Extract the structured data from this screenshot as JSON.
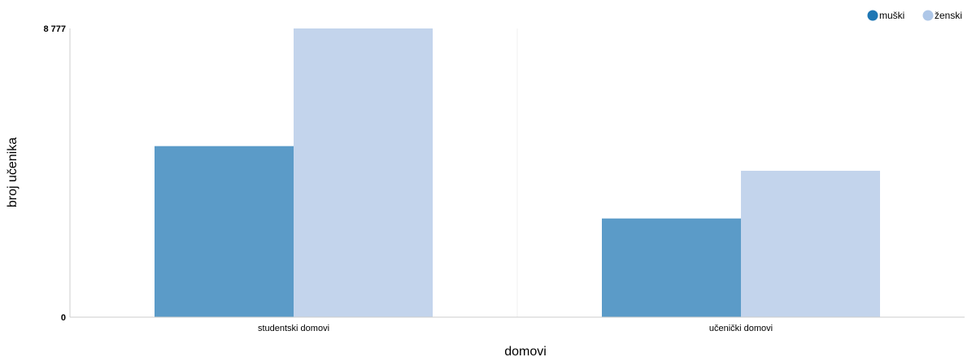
{
  "chart_data": {
    "type": "bar",
    "title": "",
    "xlabel": "domovi",
    "ylabel": "broj učenika",
    "categories": [
      "studentski domovi",
      "učenički domovi"
    ],
    "series": [
      {
        "name": "muški",
        "color": "#5b9bc8",
        "legend_color": "#1f77b4",
        "values": [
          5200,
          3000
        ]
      },
      {
        "name": "ženski",
        "color": "#c3d4ec",
        "legend_color": "#aec7e8",
        "values": [
          8777,
          4450
        ]
      }
    ],
    "ylim": [
      0,
      8777
    ],
    "y_ticks": [
      {
        "value": 0,
        "label": "0"
      },
      {
        "value": 8777,
        "label": "8 777"
      }
    ],
    "grid": false,
    "legend_position": "top-right"
  }
}
